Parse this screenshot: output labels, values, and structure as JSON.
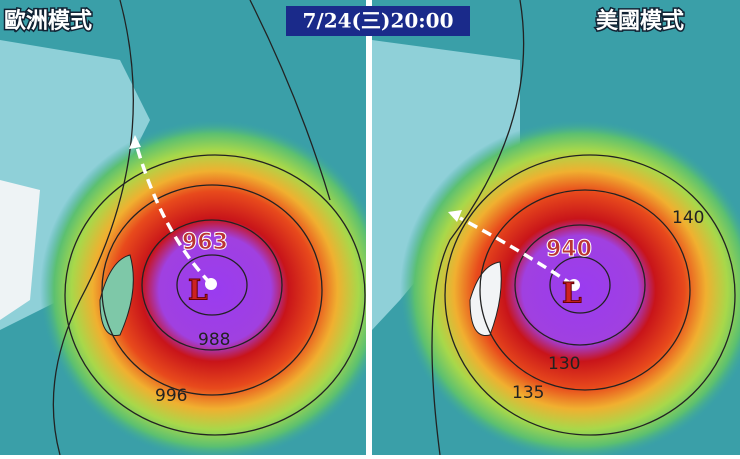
{
  "header": {
    "time": "7/24(三)20:00"
  },
  "panels": [
    {
      "title": "歐洲模式",
      "pressure": "963",
      "low": "L",
      "contours": [
        "996",
        "988"
      ]
    },
    {
      "title": "美國模式",
      "pressure": "940",
      "low": "L",
      "contours": [
        "140",
        "130",
        "135"
      ]
    }
  ]
}
